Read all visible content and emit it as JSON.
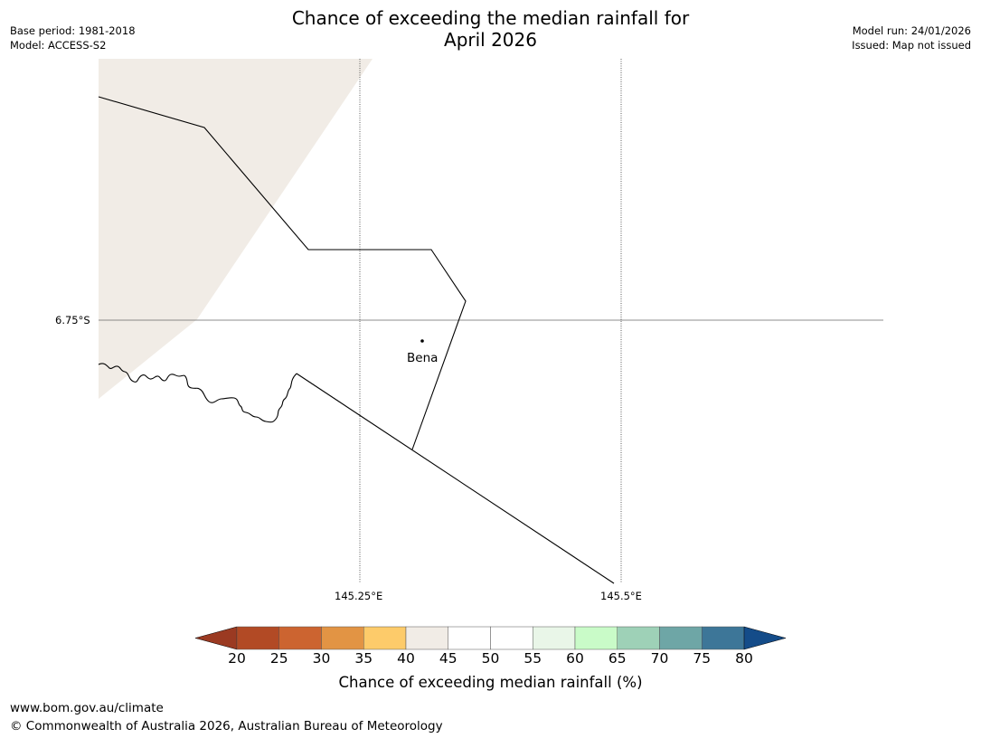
{
  "title": {
    "line1": "Chance of exceeding the median rainfall for",
    "line2": "April 2026"
  },
  "meta_left": {
    "base_period": "Base period: 1981-2018",
    "model": "Model: ACCESS-S2"
  },
  "meta_right": {
    "model_run": "Model run: 24/01/2026",
    "issued": "Issued: Map not issued"
  },
  "map": {
    "lat_label": "6.75°S",
    "lon_labels": [
      "145.25°E",
      "145.5°E"
    ],
    "place_name": "Bena"
  },
  "colorbar": {
    "label": "Chance of exceeding median rainfall (%)",
    "ticks": [
      "20",
      "25",
      "30",
      "35",
      "40",
      "45",
      "50",
      "55",
      "60",
      "65",
      "70",
      "75",
      "80"
    ],
    "colors": [
      "#9b3a22",
      "#b24a25",
      "#cc6430",
      "#e29444",
      "#fdcb6a",
      "#f1ece6",
      "#ffffff",
      "#ffffff",
      "#e9f6e8",
      "#c9fbc8",
      "#9ed1b7",
      "#6ea6a6",
      "#3d7698",
      "#144c89"
    ]
  },
  "footer": {
    "url": "www.bom.gov.au/climate",
    "copyright": "© Commonwealth of Australia 2026, Australian Bureau of Meteorology"
  }
}
